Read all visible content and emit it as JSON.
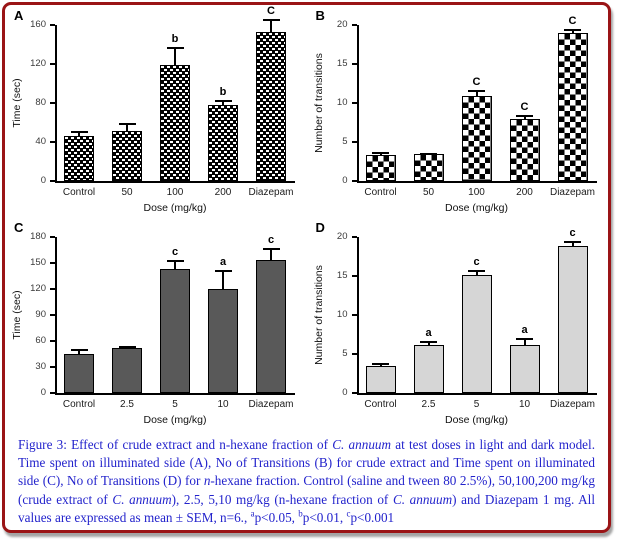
{
  "figure_border_color": "#9a1416",
  "caption_text_color": "#2323cc",
  "chart_data": [
    {
      "type": "bar",
      "panel": "A",
      "title": "",
      "xlabel": "Dose (mg/kg)",
      "ylabel": "Time (sec)",
      "ylim": [
        0,
        160
      ],
      "yticks": [
        0,
        40,
        80,
        120,
        160
      ],
      "categories": [
        "Control",
        "50",
        "100",
        "200",
        "Diazepam"
      ],
      "values": [
        46,
        51,
        119,
        78,
        153
      ],
      "errors": [
        5,
        8,
        18,
        5,
        13
      ],
      "sig_labels": [
        "",
        "",
        "b",
        "b",
        "C"
      ],
      "bar_style": "weave",
      "bar_fill": "#000000",
      "grid": false,
      "legend": "none"
    },
    {
      "type": "bar",
      "panel": "B",
      "title": "",
      "xlabel": "Dose (mg/kg)",
      "ylabel": "Number of transitions",
      "ylim": [
        0,
        20
      ],
      "yticks": [
        0,
        5,
        10,
        15,
        20
      ],
      "categories": [
        "Control",
        "50",
        "100",
        "200",
        "Diazepam"
      ],
      "values": [
        3.3,
        3.4,
        10.9,
        8.0,
        19.0
      ],
      "errors": [
        0.4,
        0.2,
        0.8,
        0.4,
        0.5
      ],
      "sig_labels": [
        "",
        "",
        "C",
        "C",
        "C"
      ],
      "bar_style": "checker",
      "bar_fill": "#000000",
      "grid": false,
      "legend": "none"
    },
    {
      "type": "bar",
      "panel": "C",
      "title": "",
      "xlabel": "Dose (mg/kg)",
      "ylabel": "Time (sec)",
      "ylim": [
        0,
        180
      ],
      "yticks": [
        0,
        30,
        60,
        90,
        120,
        150,
        180
      ],
      "categories": [
        "Control",
        "2.5",
        "5",
        "10",
        "Diazepam"
      ],
      "values": [
        45,
        52,
        143,
        120,
        154
      ],
      "errors": [
        6,
        2,
        11,
        22,
        13
      ],
      "sig_labels": [
        "",
        "",
        "c",
        "a",
        "c"
      ],
      "bar_style": "darkgray",
      "bar_fill": "#595959",
      "grid": false,
      "legend": "none"
    },
    {
      "type": "bar",
      "panel": "D",
      "title": "",
      "xlabel": "Dose (mg/kg)",
      "ylabel": "Number of transitions",
      "ylim": [
        0,
        20
      ],
      "yticks": [
        0,
        5,
        10,
        15,
        20
      ],
      "categories": [
        "Control",
        "2.5",
        "5",
        "10",
        "Diazepam"
      ],
      "values": [
        3.4,
        6.1,
        15.1,
        6.2,
        18.8
      ],
      "errors": [
        0.4,
        0.6,
        0.7,
        0.9,
        0.7
      ],
      "sig_labels": [
        "",
        "a",
        "c",
        "a",
        "c"
      ],
      "bar_style": "lightgray",
      "bar_fill": "#d6d6d6",
      "grid": false,
      "legend": "none"
    }
  ],
  "caption": {
    "segments": [
      {
        "t": "Figure 3: Effect of crude extract and n-hexane fraction of "
      },
      {
        "t": "C. annuum",
        "i": true
      },
      {
        "t": " at test doses in light and dark model. Time spent on illuminated side (A), No of Transitions (B) for crude extract and Time spent on illuminated side (C), No of Transitions (D) for "
      },
      {
        "t": "n",
        "i": true
      },
      {
        "t": "-hexane fraction. Control (saline and tween 80 2.5%), 50,100,200 mg/kg (crude extract of "
      },
      {
        "t": "C. annuum",
        "i": true
      },
      {
        "t": "), 2.5, 5,10 mg/kg (n-hexane fraction of "
      },
      {
        "t": "C. annuum",
        "i": true
      },
      {
        "t": ") and Diazepam 1 mg. All values are expressed as mean ± SEM, n=6., "
      },
      {
        "t": "a",
        "sup": true
      },
      {
        "t": "p<0.05, "
      },
      {
        "t": "b",
        "sup": true
      },
      {
        "t": "p<0.01, "
      },
      {
        "t": "c",
        "sup": true
      },
      {
        "t": "p<0.001"
      }
    ]
  }
}
